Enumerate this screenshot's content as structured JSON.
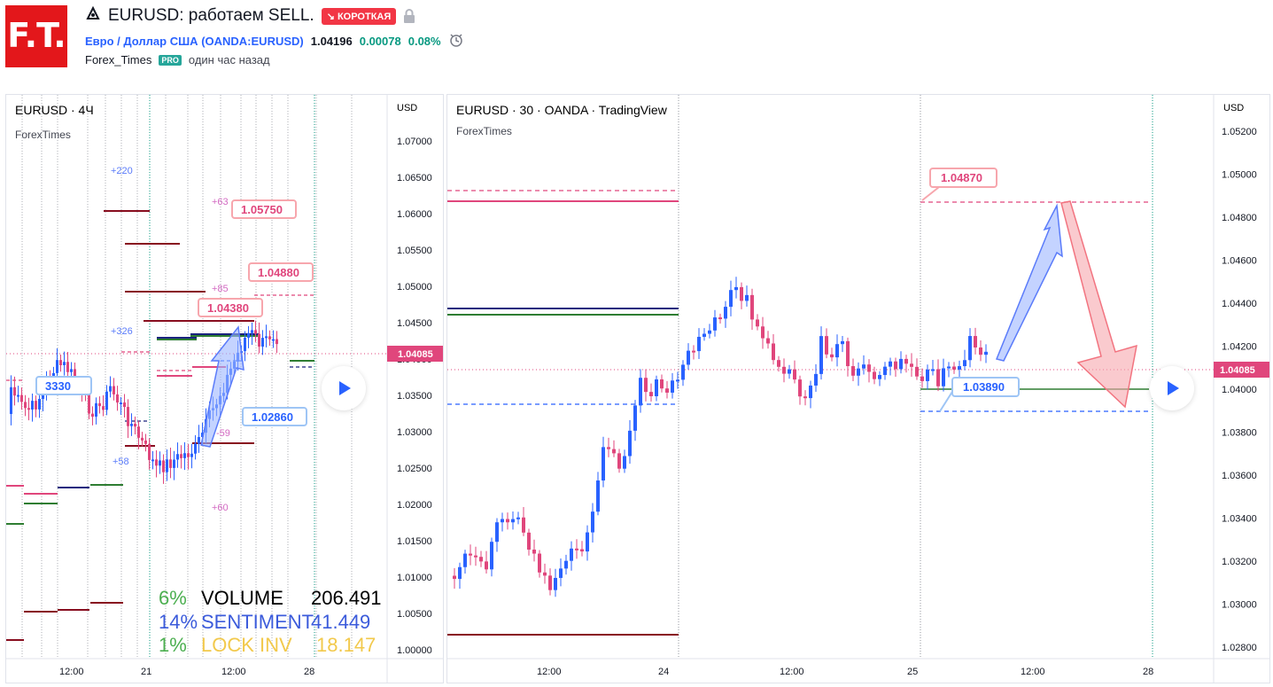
{
  "header": {
    "logo_text": "F.T.",
    "title": "EURUSD: работаем SELL.",
    "badge": "↘ КОРОТКАЯ",
    "symbol_name": "Евро / Доллар США",
    "symbol_code": "(OANDA:EURUSD)",
    "price": "1.04196",
    "change": "0.00078",
    "change_pct": "0.08%",
    "author": "Forex_Times",
    "pro_badge": "PRO",
    "time_ago": "один час назад"
  },
  "left_chart": {
    "title": "EURUSD · 4Ч",
    "subtitle": "ForexTimes",
    "currency": "USD",
    "y_ticks": [
      "1.07000",
      "1.06500",
      "1.06000",
      "1.05500",
      "1.05000",
      "1.04500",
      "1.04000",
      "1.03500",
      "1.03000",
      "1.02500",
      "1.02000",
      "1.01500",
      "1.01000",
      "1.00500",
      "1.00000"
    ],
    "x_ticks": [
      "12:00",
      "21",
      "12:00",
      "28"
    ],
    "price_label": "1.04085",
    "callouts": [
      "1.05750",
      "1.04880",
      "1.04380",
      "1.02860",
      "3330"
    ],
    "pip_labels": [
      "+220",
      "+63",
      "+85",
      "+326",
      "+58",
      "-59",
      "+60"
    ],
    "stats": [
      {
        "pct": "6%",
        "name": "VOLUME",
        "value": "206.491"
      },
      {
        "pct": "14%",
        "name": "SENTIMENT",
        "value": "41.449"
      },
      {
        "pct": "1%",
        "name": "LOCK INV",
        "value": "18.147"
      }
    ]
  },
  "right_chart": {
    "title": "EURUSD · 30 · OANDA · TradingView",
    "subtitle": "ForexTimes",
    "currency": "USD",
    "y_ticks": [
      "1.05200",
      "1.05000",
      "1.04800",
      "1.04600",
      "1.04400",
      "1.04200",
      "1.04000",
      "1.03800",
      "1.03600",
      "1.03400",
      "1.03200",
      "1.03000",
      "1.02800"
    ],
    "x_ticks": [
      "12:00",
      "24",
      "12:00",
      "25",
      "12:00",
      "28"
    ],
    "price_label": "1.04085",
    "callouts": [
      "1.04870",
      "1.03890"
    ]
  },
  "colors": {
    "bull": "#2962ff",
    "bear": "#e0467c",
    "accent": "#f23645",
    "green": "#089981"
  }
}
